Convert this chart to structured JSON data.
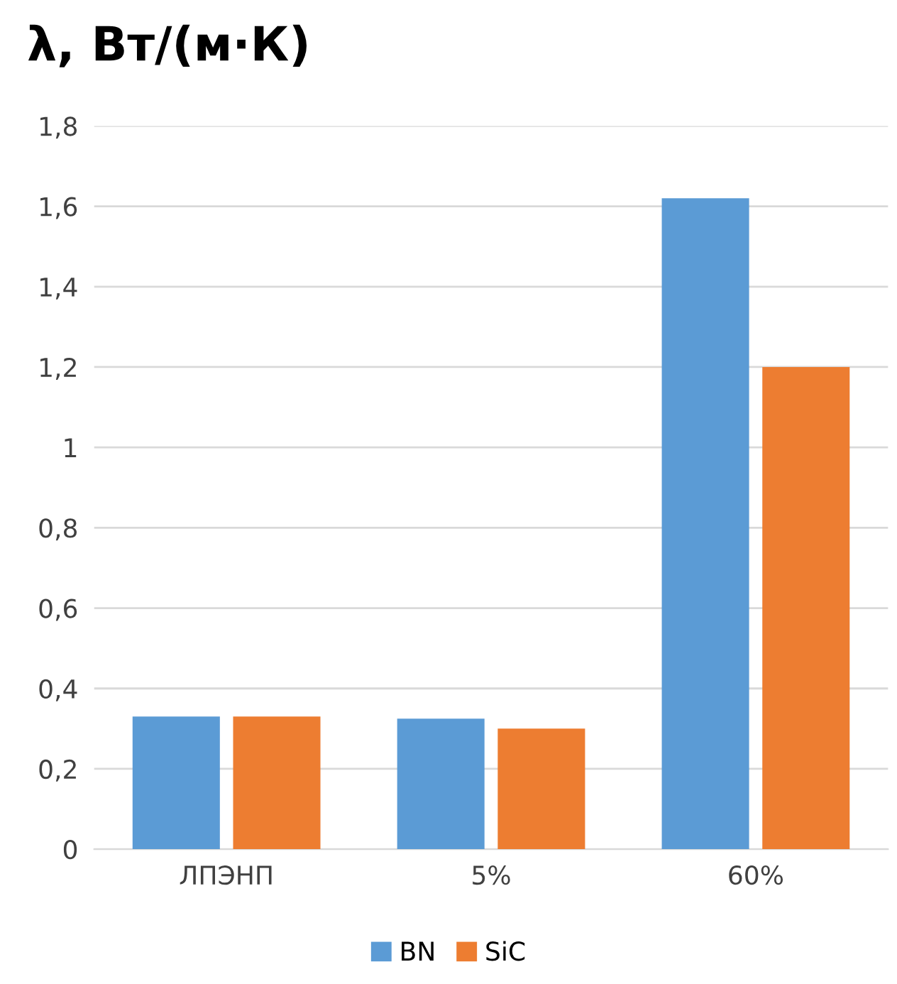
{
  "chart_data": {
    "type": "bar",
    "title": "λ, Вт/(м·К)",
    "categories": [
      "ЛПЭНП",
      "5%",
      "60%"
    ],
    "series": [
      {
        "name": "BN",
        "color": "#5b9bd5",
        "values": [
          0.33,
          0.325,
          1.62
        ]
      },
      {
        "name": "SiC",
        "color": "#ed7d31",
        "values": [
          0.33,
          0.3,
          1.2
        ]
      }
    ],
    "ylim": [
      0,
      1.8
    ],
    "yticks": [
      {
        "value": 0,
        "label": "0"
      },
      {
        "value": 0.2,
        "label": "0,2"
      },
      {
        "value": 0.4,
        "label": "0,4"
      },
      {
        "value": 0.6,
        "label": "0,6"
      },
      {
        "value": 0.8,
        "label": "0,8"
      },
      {
        "value": 1,
        "label": "1"
      },
      {
        "value": 1.2,
        "label": "1,2"
      },
      {
        "value": 1.4,
        "label": "1,4"
      },
      {
        "value": 1.6,
        "label": "1,6"
      },
      {
        "value": 1.8,
        "label": "1,8"
      }
    ],
    "grid": "y",
    "legend": "bottom"
  }
}
